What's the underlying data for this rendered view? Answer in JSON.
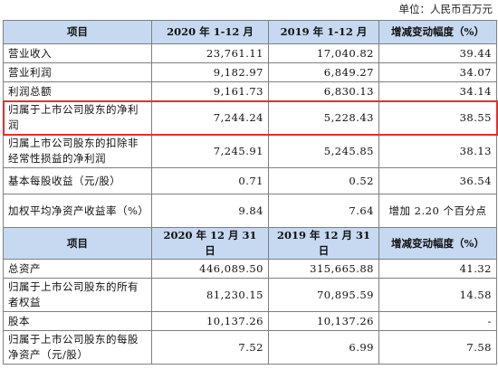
{
  "unit_label": "单位：人民币百万元",
  "section1": {
    "headers": [
      "项目",
      "2020 年 1-12 月",
      "2019 年 1-12 月",
      "增减变动幅度（%）"
    ],
    "rows": [
      {
        "item": "营业收入",
        "v2020": "23,761.11",
        "v2019": "17,040.82",
        "change": "39.44"
      },
      {
        "item": "营业利润",
        "v2020": "9,182.97",
        "v2019": "6,849.27",
        "change": "34.07"
      },
      {
        "item": "利润总额",
        "v2020": "9,161.73",
        "v2019": "6,830.13",
        "change": "34.14"
      },
      {
        "item": "归属于上市公司股东的净利润",
        "v2020": "7,244.24",
        "v2019": "5,228.43",
        "change": "38.55"
      },
      {
        "item": "归属上市公司股东的扣除非经常性损益的净利润",
        "v2020": "7,245.91",
        "v2019": "5,245.85",
        "change": "38.13"
      },
      {
        "item": "基本每股收益（元/股）",
        "v2020": "0.71",
        "v2019": "0.52",
        "change": "36.54"
      },
      {
        "item": "加权平均净资产收益率（%）",
        "v2020": "9.84",
        "v2019": "7.64",
        "change": "增加 2.20 个百分点"
      }
    ]
  },
  "section2": {
    "headers": [
      "项目",
      "2020 年 12 月 31 日",
      "2019 年 12 月 31 日",
      "增减变动幅度（%）"
    ],
    "rows": [
      {
        "item": "总资产",
        "v2020": "446,089.50",
        "v2019": "315,665.88",
        "change": "41.32"
      },
      {
        "item": "归属于上市公司股东的所有者权益",
        "v2020": "81,230.15",
        "v2019": "70,895.59",
        "change": "14.58"
      },
      {
        "item": "股本",
        "v2020": "10,137.26",
        "v2019": "10,137.26",
        "change": "-"
      },
      {
        "item": "归属于上市公司股东的每股净资产（元/股）",
        "v2020": "7.52",
        "v2019": "6.99",
        "change": "7.58"
      }
    ]
  },
  "highlight_color": "#e03030",
  "header_bg": "#c6d9f1"
}
